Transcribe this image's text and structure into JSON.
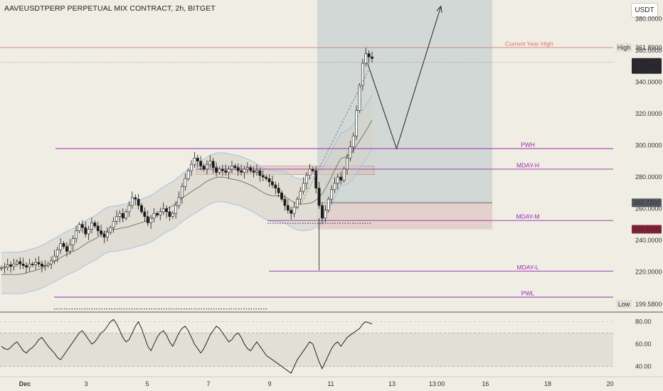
{
  "header": {
    "title": "AAVEUSDTPERP PERPETUAL MIX CONTRACT, 2h, BITGET",
    "currency": "USDT"
  },
  "colors": {
    "background": "#efede4",
    "up_candle": "#ffffff",
    "down_candle": "#1a1a1a",
    "level_line": "#9c27b0",
    "year_high_line": "#e57373",
    "target_zone": "#a9bcc2",
    "stop_zone": "#d8bcb6",
    "rsi_line": "#111111"
  },
  "chart_data": [
    {
      "type": "candlestick",
      "x_axis": {
        "tick_labels": [
          "Dec",
          "3",
          "5",
          "7",
          "9",
          "11",
          "13",
          "13:00",
          "16",
          "18",
          "20"
        ]
      },
      "y_axis": {
        "ylim": [
          195,
          392
        ],
        "tick_labels": [
          "380.0000",
          "360.0000",
          "340.0000",
          "320.0000",
          "300.0000",
          "280.0000",
          "260.0000",
          "240.0000",
          "220.0000"
        ]
      },
      "series": [
        {
          "close": [
            222.5,
            223,
            224.5,
            223.5,
            225,
            226.5,
            225,
            224,
            223,
            225,
            224.5,
            226,
            225,
            223.5,
            224,
            225,
            227,
            230,
            234,
            238,
            236,
            233,
            237,
            241,
            246,
            250,
            248,
            244,
            247,
            251,
            249,
            246,
            244,
            242,
            245,
            248,
            252,
            255,
            257,
            254,
            258,
            262,
            267,
            266,
            262,
            258,
            255,
            251,
            254,
            257,
            256,
            258,
            260,
            258,
            255,
            257,
            262,
            267,
            274,
            279,
            284,
            288,
            292,
            290,
            287,
            285,
            288,
            290,
            286,
            283,
            285,
            284,
            283,
            285,
            287,
            286,
            284,
            283,
            285,
            286,
            284,
            283,
            284,
            281,
            280,
            279,
            277,
            275,
            273,
            270,
            266,
            262,
            259,
            257,
            261,
            266,
            271,
            276,
            281,
            285,
            284,
            273,
            262,
            254,
            259,
            266,
            272,
            276,
            280,
            278,
            285,
            292,
            299,
            306,
            322,
            338,
            352,
            358,
            356,
            355
          ]
        }
      ],
      "levels": [
        {
          "label": "Current Year High",
          "value": 361.89
        },
        {
          "label": "PWH",
          "value": 298
        },
        {
          "label": "MDAY-H",
          "value": 285
        },
        {
          "label": "MDAY-M",
          "value": 252.5
        },
        {
          "label": "MDAY-L",
          "value": 220.5
        },
        {
          "label": "PWL",
          "value": 204
        }
      ],
      "annotations": {
        "high_label": "High",
        "high_value": "361.8900",
        "price_label": "352.5400",
        "countdown": "01:56:52",
        "entry_value": "263.7200",
        "stop_value": "246.9300",
        "low_label": "Low",
        "low_value": "199.5800"
      },
      "projection_path": [
        [
          12.2,
          352
        ],
        [
          13.15,
          298
        ],
        [
          14.6,
          388
        ]
      ],
      "zones": {
        "target_top": 392,
        "entry": 263.72,
        "stop": 246.93,
        "start_x": 11.0,
        "end_x": 16.2
      }
    },
    {
      "type": "line",
      "name_shown": "",
      "ylim": [
        32,
        88
      ],
      "tick_labels": [
        "80.00",
        "60.00",
        "40.00"
      ],
      "band": [
        40,
        70
      ],
      "values": [
        58,
        56,
        55,
        57,
        60,
        62,
        58,
        54,
        52,
        55,
        57,
        60,
        64,
        66,
        62,
        58,
        55,
        52,
        48,
        46,
        50,
        54,
        58,
        62,
        66,
        70,
        72,
        68,
        64,
        60,
        62,
        66,
        70,
        72,
        76,
        80,
        82,
        78,
        72,
        66,
        62,
        64,
        70,
        76,
        80,
        74,
        66,
        58,
        54,
        60,
        66,
        70,
        72,
        68,
        62,
        58,
        64,
        70,
        74,
        76,
        72,
        66,
        60,
        56,
        52,
        56,
        62,
        68,
        72,
        76,
        74,
        70,
        66,
        62,
        64,
        68,
        70,
        66,
        60,
        56,
        54,
        58,
        62,
        58,
        54,
        50,
        48,
        46,
        44,
        42,
        40,
        38,
        36,
        34,
        40,
        46,
        50,
        54,
        58,
        62,
        60,
        52,
        44,
        38,
        44,
        50,
        56,
        60,
        62,
        58,
        62,
        66,
        68,
        70,
        72,
        74,
        78,
        80,
        79,
        78
      ]
    }
  ]
}
